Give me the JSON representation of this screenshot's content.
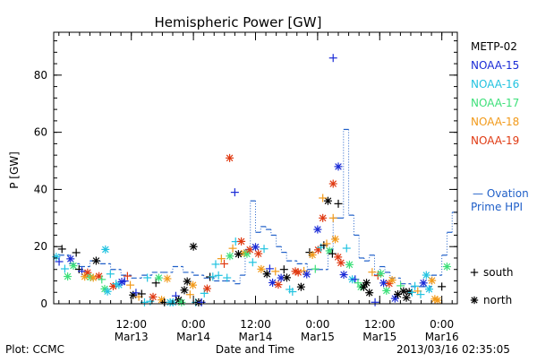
{
  "chart_data": {
    "type": "scatter",
    "title": "Hemispheric Power [GW]",
    "xlabel": "Date and Time",
    "ylabel": "P [GW]",
    "footer_left": "Plot: CCMC",
    "footer_right": "2013/03/16 02:35:05",
    "xlim": [
      -3,
      75
    ],
    "ylim": [
      0,
      95
    ],
    "yticks": [
      0,
      20,
      40,
      60,
      80
    ],
    "y_minor_step": 4,
    "x_minor_step": 2,
    "xticks": [
      {
        "x": 12,
        "line1": "12:00",
        "line2": "Mar13"
      },
      {
        "x": 24,
        "line1": "0:00",
        "line2": "Mar14"
      },
      {
        "x": 36,
        "line1": "12:00",
        "line2": "Mar14"
      },
      {
        "x": 48,
        "line1": "0:00",
        "line2": "Mar15"
      },
      {
        "x": 60,
        "line1": "12:00",
        "line2": "Mar15"
      },
      {
        "x": 72,
        "line1": "0:00",
        "line2": "Mar16"
      }
    ],
    "legend_position": "right",
    "series": [
      {
        "name": "METP-02",
        "color": "#000000",
        "marker": "mixed"
      },
      {
        "name": "NOAA-15",
        "color": "#1a2bd6",
        "marker": "mixed"
      },
      {
        "name": "NOAA-16",
        "color": "#22c3e0",
        "marker": "mixed"
      },
      {
        "name": "NOAA-17",
        "color": "#3ee07a",
        "marker": "mixed"
      },
      {
        "name": "NOAA-18",
        "color": "#f29a1a",
        "marker": "mixed"
      },
      {
        "name": "NOAA-19",
        "color": "#e03a12",
        "marker": "mixed"
      }
    ],
    "ovation": {
      "label_line1": "— Ovation",
      "label_line2": "Prime HPI",
      "color": "#1f5fc8",
      "x": [
        -2,
        0,
        2,
        4,
        6,
        8,
        10,
        12,
        14,
        16,
        18,
        20,
        22,
        24,
        26,
        28,
        30,
        32,
        33,
        34,
        35,
        36,
        37,
        38,
        39,
        40,
        41,
        42,
        44,
        46,
        48,
        50,
        51,
        52,
        53,
        54,
        55,
        56,
        57,
        58,
        59,
        60,
        61,
        62,
        64,
        66,
        68,
        70,
        72,
        73,
        74,
        75
      ],
      "y": [
        17,
        14,
        13,
        15,
        14,
        12,
        10,
        9,
        10,
        11,
        11,
        13,
        11,
        10,
        9,
        8,
        8,
        7,
        10,
        19,
        36,
        25,
        27,
        26,
        24,
        20,
        18,
        15,
        14,
        12,
        12,
        19,
        30,
        30,
        61,
        31,
        24,
        16,
        15,
        17,
        10,
        13,
        11,
        9,
        7,
        6,
        6,
        10,
        17,
        25,
        32,
        58
      ]
    },
    "markers_legend": [
      {
        "symbol": "+",
        "label": "south"
      },
      {
        "symbol": "*",
        "label": "north"
      }
    ],
    "highlights": [
      {
        "series": 1,
        "x": 51,
        "y": 86,
        "m": "+"
      },
      {
        "series": 5,
        "x": 31,
        "y": 51,
        "m": "*"
      },
      {
        "series": 1,
        "x": 52,
        "y": 48,
        "m": "*"
      },
      {
        "series": 5,
        "x": 51,
        "y": 42,
        "m": "*"
      },
      {
        "series": 1,
        "x": 32,
        "y": 39,
        "m": "+"
      },
      {
        "series": 0,
        "x": 50,
        "y": 36,
        "m": "*"
      },
      {
        "series": 4,
        "x": 49,
        "y": 37,
        "m": "+"
      },
      {
        "series": 4,
        "x": 51,
        "y": 30,
        "m": "+"
      },
      {
        "series": 5,
        "x": 49,
        "y": 30,
        "m": "*"
      },
      {
        "series": 0,
        "x": 24,
        "y": 20,
        "m": "*"
      },
      {
        "series": 2,
        "x": 7,
        "y": 19,
        "m": "*"
      },
      {
        "series": 3,
        "x": 73,
        "y": 13,
        "m": "*"
      },
      {
        "series": 0,
        "x": 72,
        "y": 6,
        "m": "+"
      },
      {
        "series": 0,
        "x": 52,
        "y": 35,
        "m": "+"
      },
      {
        "series": 1,
        "x": 48,
        "y": 26,
        "m": "*"
      }
    ]
  }
}
